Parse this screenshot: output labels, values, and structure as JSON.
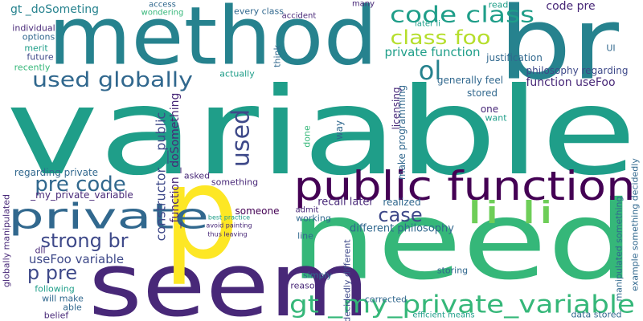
{
  "words": [
    "variable",
    "method",
    "br",
    "need",
    "seem",
    "p",
    "public function",
    "gt _my_private_variable",
    "private",
    "code class",
    "class foo",
    "used globally",
    "li li",
    "ol",
    "private function",
    "pre code",
    "strong br",
    "p pre",
    "useFoo variable",
    "case",
    "used",
    "constructor __public",
    "_function _doSomething",
    "gt _doSometing",
    "code pre",
    "individual",
    "options",
    "merit",
    "future",
    "recently",
    "regarding private",
    "_my_private_variable",
    "dll",
    "following",
    "will make",
    "able",
    "belief",
    "someone",
    "best practice",
    "avoid painting",
    "thus leaving",
    "recall later",
    "realized",
    "admit",
    "working",
    "different philosophy",
    "line",
    "simply",
    "reason",
    "corrected",
    "storing",
    "data stored",
    "generally feel",
    "function useFoo",
    "philosophy regarding",
    "stored",
    "one",
    "want",
    "every class",
    "many",
    "accident",
    "later li",
    "read",
    "justification",
    "UI",
    "access",
    "wondering",
    "asked",
    "something",
    "make programming",
    "licensing",
    "example something decidedly",
    "decidedly different",
    "actually",
    "think",
    "done",
    "way",
    "efficient means",
    "manipulated something",
    "globally manipulated"
  ]
}
